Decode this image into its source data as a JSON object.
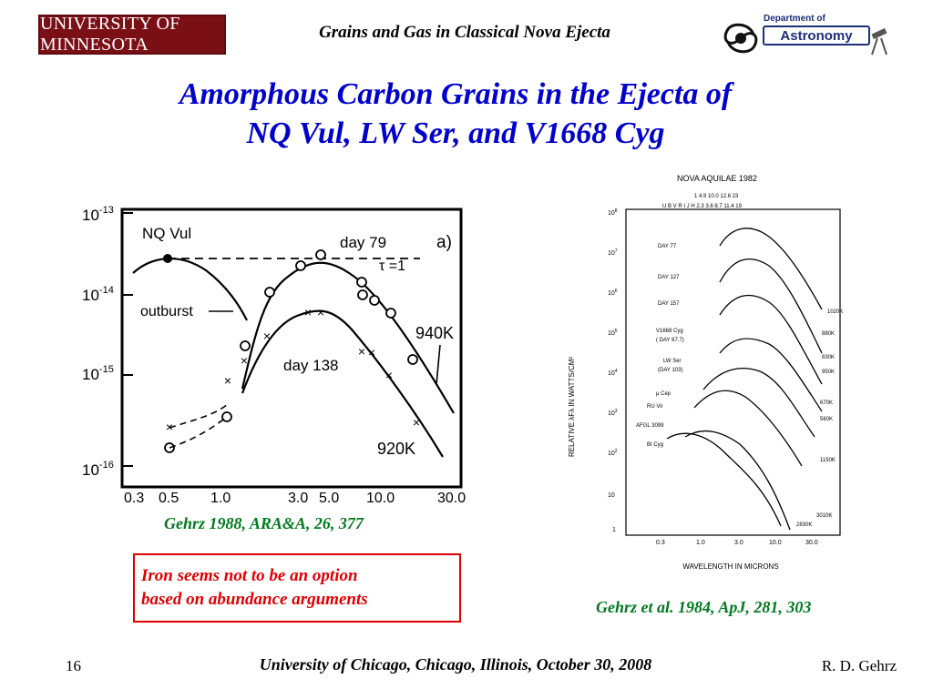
{
  "header": {
    "university_logo": "UNIVERSITY OF MINNESOTA",
    "title": "Grains and Gas in Classical Nova Ejecta",
    "dept_logo_top": "Department of",
    "dept_logo_name": "Astronomy"
  },
  "slide": {
    "title_line1": "Amorphous Carbon Grains in the Ejecta of",
    "title_line2": "NQ Vul, LW Ser, and V1668 Cyg"
  },
  "left_figure": {
    "labels": {
      "object": "NQ Vul",
      "panel": "a)",
      "outburst": "outburst",
      "day79": "day 79",
      "day138": "day 138",
      "tau": "τ =1",
      "t940": "940K",
      "t920": "920K"
    },
    "y_ticks": [
      "10-13",
      "10-14",
      "10-15",
      "10-16"
    ],
    "x_ticks": [
      "0.3",
      "0.5",
      "1.0",
      "3.0",
      "5.0",
      "10.0",
      "30.0"
    ],
    "caption": "Gehrz 1988, ARA&A, 26, 377"
  },
  "right_figure": {
    "title": "NOVA AQUILAE 1982",
    "band_labels": "U B V R I  J H 2.3 3.6  8.7 11.4 19",
    "band_numbers": "1   4.9 10.0 12.6 23",
    "ylabel": "RELATIVE λFλ IN WATTS/CM²",
    "xlabel": "WAVELENGTH IN MICRONS",
    "x_ticks": [
      "0.3",
      "1.0",
      "3.0",
      "10.0",
      "30.0"
    ],
    "y_ticks": [
      "10⁸",
      "10⁷",
      "10⁶",
      "10⁵",
      "10⁴",
      "10³",
      "10²",
      "10",
      "1"
    ],
    "curve_labels": [
      "DAY 77",
      "DAY 127",
      "DAY 157",
      "V1668 Cyg",
      "( DAY 67.7)",
      "LW Ser",
      "(DAY 103)",
      "μ Cep",
      "RU Vir",
      "AFGL 3099",
      "BI Cyg"
    ],
    "temp_labels": [
      "1020K",
      "880K",
      "830K",
      "950K",
      "670K",
      "560K",
      "1150K",
      "3010K",
      "2830K"
    ],
    "caption": "Gehrz et al. 1984, ApJ, 281, 303"
  },
  "note": {
    "line1": "Iron seems not to be an option",
    "line2": "based on abundance arguments"
  },
  "footer": {
    "page_number": "16",
    "venue": "University of Chicago, Chicago, Illinois, October 30, 2008",
    "author": "R. D. Gehrz"
  }
}
